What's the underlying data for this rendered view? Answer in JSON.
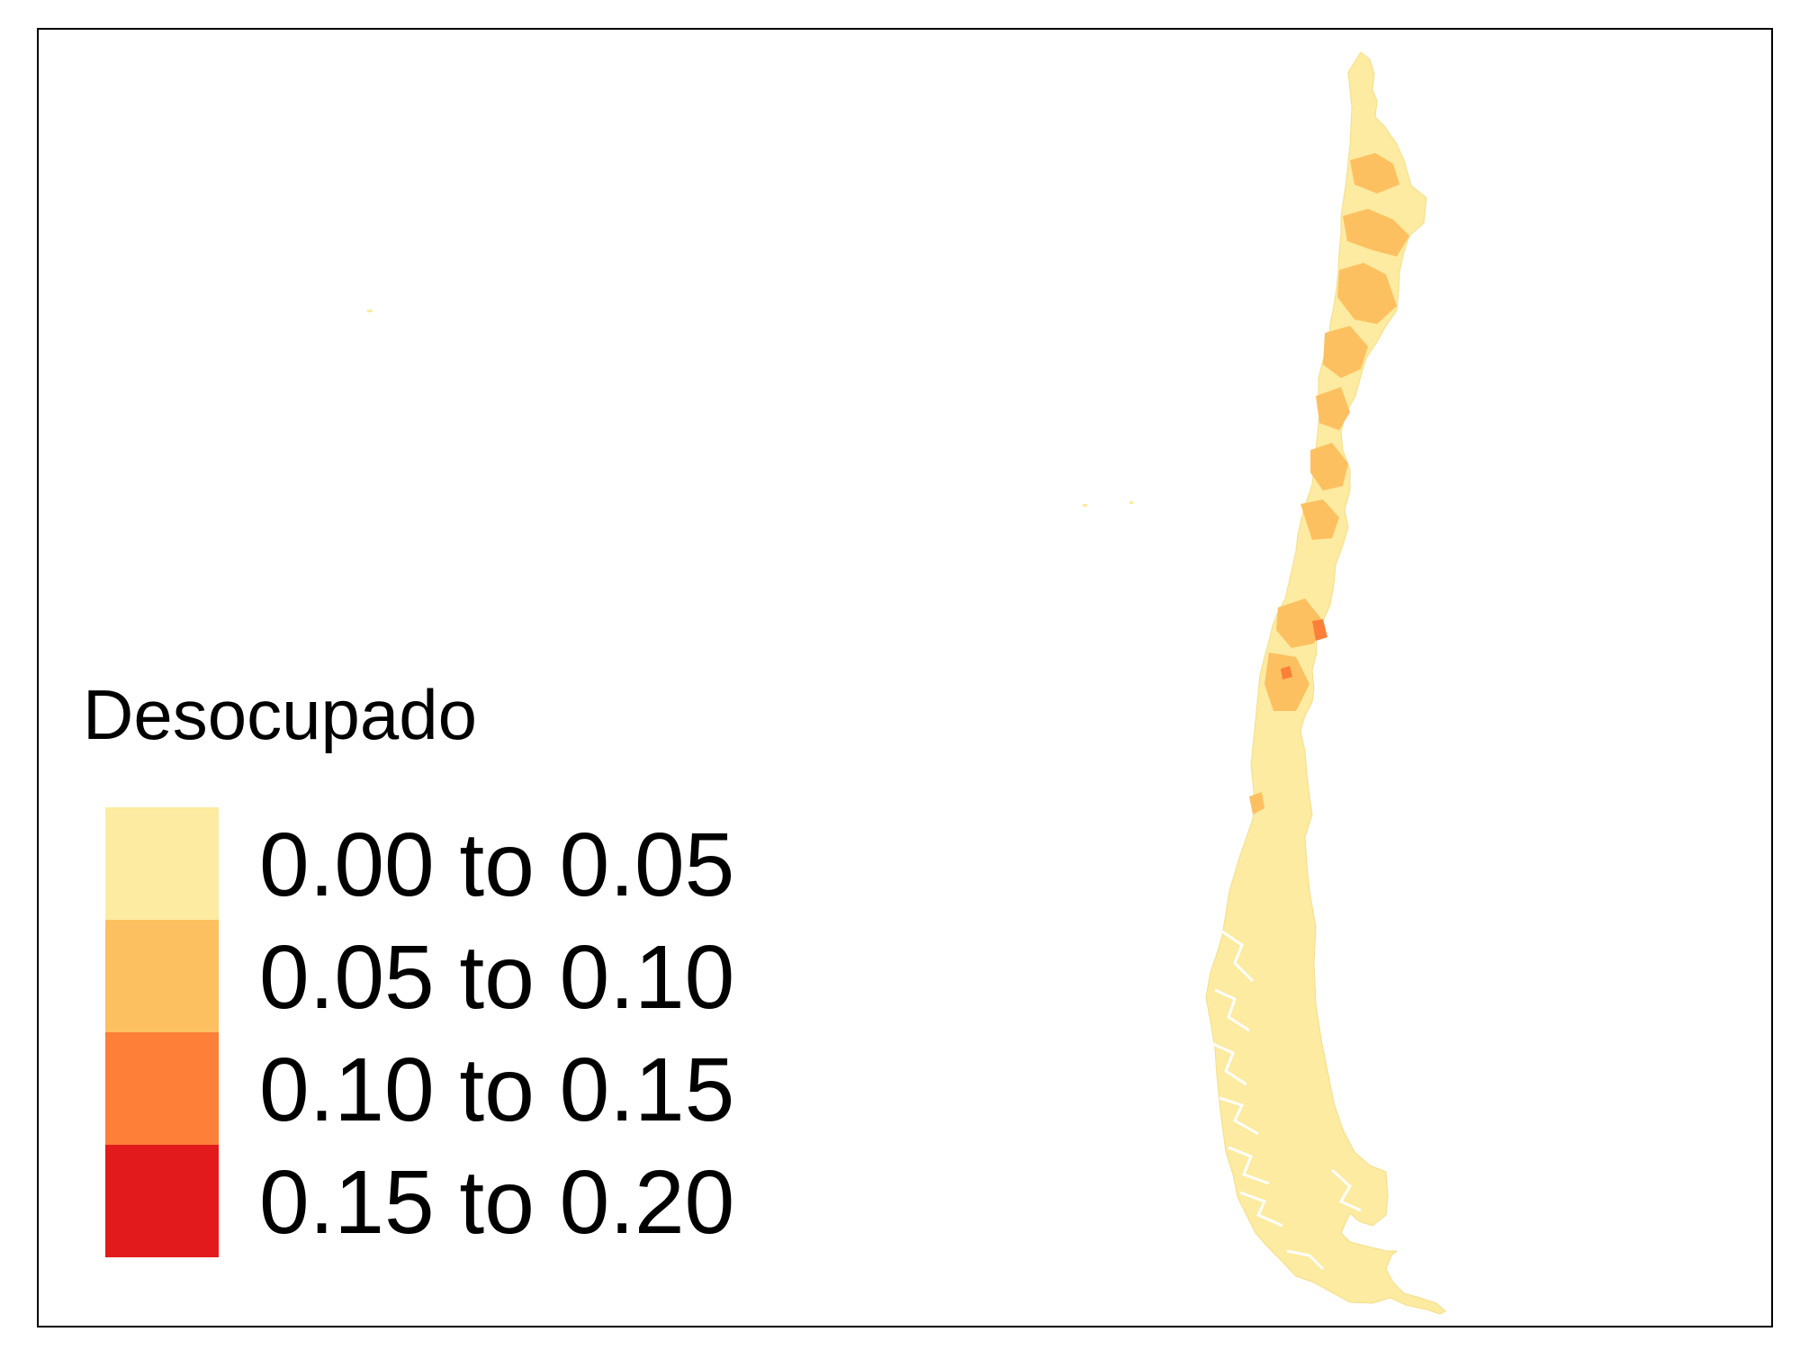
{
  "legend": {
    "title": "Desocupado",
    "items": [
      {
        "label": "0.00 to 0.05",
        "color": "#FCEBA0"
      },
      {
        "label": "0.05 to 0.10",
        "color": "#FDC060"
      },
      {
        "label": "0.10 to 0.15",
        "color": "#FD7F38"
      },
      {
        "label": "0.15 to 0.20",
        "color": "#E31A1C"
      }
    ]
  },
  "map": {
    "base_color": "#FCEBA0",
    "regions": [
      {
        "name": "far-north-commune",
        "class": "0.00 to 0.05"
      },
      {
        "name": "north-commune-1",
        "class": "0.05 to 0.10"
      },
      {
        "name": "north-commune-2",
        "class": "0.05 to 0.10"
      },
      {
        "name": "north-commune-3",
        "class": "0.05 to 0.10"
      },
      {
        "name": "north-central-commune-1",
        "class": "0.05 to 0.10"
      },
      {
        "name": "north-central-commune-2",
        "class": "0.05 to 0.10"
      },
      {
        "name": "central-commune-1",
        "class": "0.05 to 0.10"
      },
      {
        "name": "central-commune-2",
        "class": "0.05 to 0.10"
      },
      {
        "name": "south-central-commune-1",
        "class": "0.05 to 0.10"
      },
      {
        "name": "south-central-commune-2",
        "class": "0.05 to 0.10"
      },
      {
        "name": "south-central-commune-3",
        "class": "0.10 to 0.15"
      },
      {
        "name": "south-central-commune-4",
        "class": "0.10 to 0.15"
      },
      {
        "name": "south-coastal-commune",
        "class": "0.05 to 0.10"
      }
    ]
  }
}
